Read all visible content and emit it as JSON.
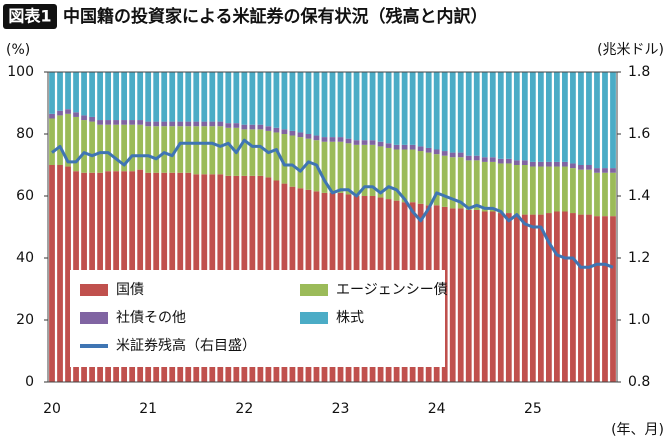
{
  "chart_data": {
    "type": "bar",
    "stacked": true,
    "label": "図表1",
    "title": "中国籍の投資家による米証券の保有状況（残高と内訳）",
    "y_label": "(%)",
    "y2_label": "(兆米ドル)",
    "x_label": "(年、月)",
    "categories": [
      "20",
      null,
      null,
      null,
      null,
      null,
      null,
      null,
      null,
      null,
      null,
      null,
      "21",
      null,
      null,
      null,
      null,
      null,
      null,
      null,
      null,
      null,
      null,
      null,
      "22",
      null,
      null,
      null,
      null,
      null,
      null,
      null,
      null,
      null,
      null,
      null,
      "23",
      null,
      null,
      null,
      null,
      null,
      null,
      null,
      null,
      null,
      null,
      null,
      "24",
      null,
      null,
      null,
      null,
      null,
      null,
      null,
      null,
      null,
      null,
      null,
      "25",
      null,
      null,
      null,
      null,
      null,
      null,
      null,
      null,
      null,
      null
    ],
    "ylim": [
      0,
      100
    ],
    "yticks": [
      0,
      20,
      40,
      60,
      80,
      100
    ],
    "y2lim": [
      0.8,
      1.8
    ],
    "y2ticks": [
      0.8,
      {
        "value": 1,
        "label": "1.0"
      },
      1.2,
      1.4,
      1.6,
      1.8
    ],
    "series": [
      {
        "name": "国債",
        "color": "#c0504d",
        "values": [
          70,
          70,
          69.5,
          68,
          67.5,
          67.5,
          67.5,
          68,
          68,
          68,
          68,
          68.5,
          67.5,
          67.5,
          67.5,
          67.5,
          67.5,
          67.5,
          67,
          67,
          67,
          67,
          66.5,
          66.5,
          66.5,
          66.5,
          66.5,
          66,
          65,
          64,
          63,
          62.5,
          62,
          61.5,
          61,
          61,
          61,
          60.5,
          60,
          60,
          60,
          59.5,
          59,
          58.5,
          58,
          58,
          57.5,
          57,
          57,
          56.5,
          56,
          56,
          55.5,
          55.5,
          55,
          55,
          54.5,
          54.5,
          54,
          54,
          54,
          54,
          54.5,
          55,
          55,
          54.5,
          54,
          54,
          53.5,
          53.5,
          53.5
        ]
      },
      {
        "name": "エージェンシー債",
        "color": "#9bbb59",
        "values": [
          15,
          16,
          17,
          17.5,
          17,
          16.5,
          15.5,
          15,
          15,
          15,
          15,
          14.5,
          15,
          15,
          15,
          15,
          15,
          15,
          15.5,
          15.5,
          15.5,
          15.5,
          15.5,
          15.5,
          15,
          15,
          15,
          15,
          15.5,
          16,
          16.5,
          16.5,
          16.5,
          16.5,
          16.5,
          16.5,
          16.5,
          16.5,
          16.5,
          16.5,
          16.5,
          16.5,
          16.5,
          16.5,
          17,
          17,
          17,
          17,
          16.5,
          16.5,
          16.5,
          16.5,
          16,
          16,
          16,
          16,
          16,
          16,
          16,
          16,
          15.5,
          15.5,
          15,
          14.5,
          14.5,
          14.5,
          14.5,
          14.5,
          14,
          14,
          14
        ]
      },
      {
        "name": "社債その他",
        "color": "#8064a2",
        "values": [
          1.5,
          1.5,
          1.5,
          1.5,
          1.5,
          1.5,
          1.5,
          1.5,
          1.5,
          1.5,
          1.5,
          1.5,
          1.5,
          1.5,
          1.5,
          1.5,
          1.5,
          1.5,
          1.5,
          1.5,
          1.5,
          1.5,
          1.5,
          1.5,
          1.5,
          1.5,
          1.5,
          1.5,
          1.5,
          1.5,
          1.5,
          1.5,
          1.5,
          1.5,
          1.5,
          1.5,
          1.5,
          1.5,
          1.5,
          1.5,
          1.5,
          1.5,
          1.5,
          1.5,
          1.5,
          1.5,
          1.5,
          1.5,
          1.5,
          1.5,
          1.5,
          1.5,
          1.5,
          1.5,
          1.5,
          1.5,
          1.5,
          1.5,
          1.5,
          1.5,
          1.5,
          1.5,
          1.5,
          1.5,
          1.5,
          1.5,
          1.5,
          1.5,
          1.5,
          1.5,
          1.5
        ]
      },
      {
        "name": "株式",
        "color": "#4bacc6",
        "values": [
          13.5,
          12.5,
          12,
          13,
          14,
          14.5,
          15.5,
          15.5,
          15.5,
          15.5,
          15.5,
          15.5,
          16,
          16,
          16,
          16,
          16,
          16,
          16,
          16,
          16,
          16,
          16.5,
          16.5,
          17,
          17,
          17,
          17.5,
          18,
          18.5,
          19,
          19.5,
          20,
          20.5,
          21,
          21,
          21,
          21.5,
          22,
          22,
          22,
          22.5,
          23,
          23.5,
          23.5,
          23.5,
          24,
          24.5,
          25,
          25.5,
          26,
          26,
          27,
          27,
          27.5,
          27.5,
          28,
          28,
          28.5,
          28.5,
          29,
          29,
          29,
          29,
          29,
          29.5,
          30,
          30,
          31,
          31,
          31
        ]
      },
      {
        "name": "米証券残高（右目盛）",
        "color": "#3f75b3",
        "type": "line",
        "axis": "y2",
        "values": [
          1.54,
          1.56,
          1.51,
          1.51,
          1.54,
          1.53,
          1.54,
          1.54,
          1.52,
          1.5,
          1.53,
          1.53,
          1.53,
          1.52,
          1.54,
          1.53,
          1.57,
          1.57,
          1.57,
          1.57,
          1.57,
          1.56,
          1.57,
          1.54,
          1.58,
          1.56,
          1.56,
          1.54,
          1.55,
          1.5,
          1.5,
          1.48,
          1.51,
          1.5,
          1.45,
          1.41,
          1.42,
          1.42,
          1.4,
          1.43,
          1.43,
          1.41,
          1.43,
          1.42,
          1.39,
          1.35,
          1.32,
          1.36,
          1.41,
          1.4,
          1.39,
          1.38,
          1.36,
          1.37,
          1.36,
          1.36,
          1.35,
          1.32,
          1.34,
          1.31,
          1.3,
          1.3,
          1.25,
          1.21,
          1.2,
          1.2,
          1.17,
          1.17,
          1.18,
          1.18,
          1.17
        ]
      }
    ]
  }
}
